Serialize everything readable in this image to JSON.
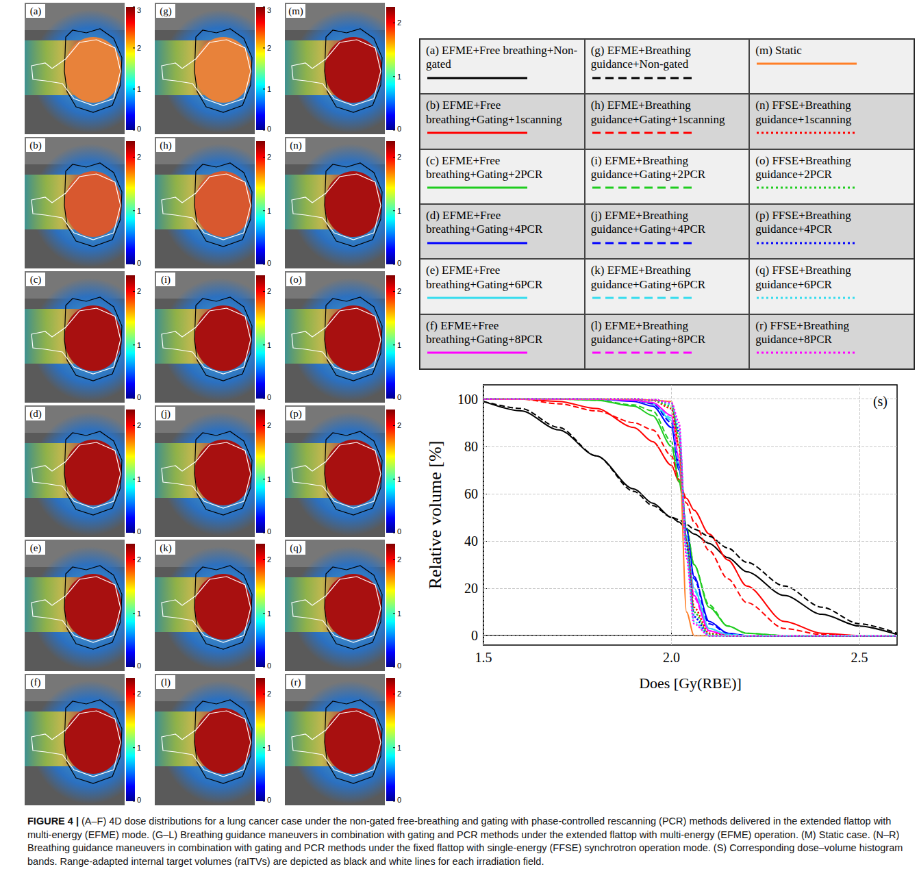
{
  "chart_data": {
    "type": "line",
    "xlabel": "Does [Gy(RBE)]",
    "ylabel": "Relative volume [%]",
    "annotations": [
      "(s)"
    ],
    "xlim": [
      1.5,
      2.6
    ],
    "xticks": [
      1.5,
      {
        "value": 2,
        "label": "2.0"
      },
      2.5
    ],
    "ylim": [
      -4,
      106
    ],
    "yticks": [
      0,
      20,
      40,
      60,
      80,
      100
    ],
    "grid": true,
    "x": [
      1.5,
      1.6,
      1.7,
      1.8,
      1.9,
      1.95,
      2.0,
      2.02,
      2.04,
      2.06,
      2.1,
      2.15,
      2.2,
      2.3,
      2.4,
      2.5,
      2.6
    ],
    "series": [
      {
        "name": "(a) EFME+Free breathing+Non-gated",
        "color": "#000000",
        "line_style": "solid",
        "values": [
          99,
          95,
          87,
          76,
          62,
          56,
          50,
          48,
          45,
          43,
          39,
          33,
          27,
          17,
          9,
          4,
          0.5
        ]
      },
      {
        "name": "(b) EFME+Free breathing+Gating+1scanning",
        "color": "#ff0000",
        "line_style": "solid",
        "values": [
          100,
          100,
          99,
          96,
          88,
          82,
          72,
          65,
          58,
          53,
          43,
          32,
          21,
          6,
          1,
          0,
          0
        ]
      },
      {
        "name": "(c) EFME+Free breathing+Gating+2PCR",
        "color": "#1fcc1f",
        "line_style": "solid",
        "values": [
          100,
          100,
          100,
          99.5,
          97,
          93,
          80,
          65,
          45,
          30,
          12,
          4,
          1,
          0,
          0,
          0,
          0
        ]
      },
      {
        "name": "(d) EFME+Free breathing+Gating+4PCR",
        "color": "#0000ff",
        "line_style": "solid",
        "values": [
          100,
          100,
          100,
          100,
          99,
          97,
          88,
          70,
          45,
          25,
          6,
          1,
          0,
          0,
          0,
          0,
          0
        ]
      },
      {
        "name": "(e) EFME+Free breathing+Gating+6PCR",
        "color": "#33dcee",
        "line_style": "solid",
        "values": [
          100,
          100,
          100,
          100,
          99.5,
          98,
          91,
          72,
          42,
          20,
          3,
          0.5,
          0,
          0,
          0,
          0,
          0
        ]
      },
      {
        "name": "(f) EFME+Free breathing+Gating+8PCR",
        "color": "#ff00ff",
        "line_style": "solid",
        "values": [
          100,
          100,
          100,
          100,
          99.5,
          98.5,
          93,
          74,
          40,
          17,
          2,
          0,
          0,
          0,
          0,
          0,
          0
        ]
      },
      {
        "name": "(g) EFME+Breathing guidance+Non-gated",
        "color": "#000000",
        "line_style": "dashed",
        "values": [
          99,
          96,
          88,
          76,
          61,
          55,
          50,
          49,
          47,
          45,
          42,
          37,
          31,
          21,
          12,
          5,
          1
        ]
      },
      {
        "name": "(h) EFME+Breathing guidance+Gating+1scanning",
        "color": "#ff0000",
        "line_style": "dashed",
        "values": [
          100,
          100,
          98,
          95,
          90,
          87,
          76,
          66,
          56,
          48,
          36,
          24,
          14,
          3,
          0.5,
          0,
          0
        ]
      },
      {
        "name": "(i) EFME+Breathing guidance+Gating+2PCR",
        "color": "#1fcc1f",
        "line_style": "dashed",
        "values": [
          100,
          100,
          100,
          99.5,
          97.5,
          95,
          82,
          66,
          46,
          30,
          13,
          4,
          1,
          0,
          0,
          0,
          0
        ]
      },
      {
        "name": "(j) EFME+Breathing guidance+Gating+4PCR",
        "color": "#0000ff",
        "line_style": "dashed",
        "values": [
          100,
          100,
          100,
          100,
          99.5,
          98,
          90,
          72,
          45,
          24,
          5,
          1,
          0,
          0,
          0,
          0,
          0
        ]
      },
      {
        "name": "(k) EFME+Breathing guidance+Gating+6PCR",
        "color": "#33dcee",
        "line_style": "dashed",
        "values": [
          100,
          100,
          100,
          100,
          99.5,
          98.5,
          92,
          73,
          42,
          19,
          3,
          0.5,
          0,
          0,
          0,
          0,
          0
        ]
      },
      {
        "name": "(l) EFME+Breathing guidance+Gating+8PCR",
        "color": "#ff00ff",
        "line_style": "dashed",
        "values": [
          100,
          100,
          100,
          100,
          99.5,
          98.5,
          93,
          75,
          40,
          16,
          2,
          0,
          0,
          0,
          0,
          0,
          0
        ]
      },
      {
        "name": "(m) Static",
        "color": "#ff7f27",
        "line_style": "solid",
        "values": [
          100,
          100,
          100,
          100,
          100,
          99.5,
          99,
          80,
          10,
          0,
          0,
          0,
          0,
          0,
          0,
          0,
          0
        ]
      },
      {
        "name": "(n) FFSE+Breathing guidance+1scanning",
        "color": "#ff0000",
        "line_style": "dotted",
        "values": [
          100,
          100,
          100,
          100,
          100,
          99.5,
          96,
          80,
          40,
          12,
          1,
          0,
          0,
          0,
          0,
          0,
          0
        ]
      },
      {
        "name": "(o) FFSE+Breathing guidance+2PCR",
        "color": "#1fcc1f",
        "line_style": "dotted",
        "values": [
          100,
          100,
          100,
          100,
          100,
          99.5,
          97,
          84,
          40,
          10,
          0.5,
          0,
          0,
          0,
          0,
          0,
          0
        ]
      },
      {
        "name": "(p) FFSE+Breathing guidance+4PCR",
        "color": "#0000ff",
        "line_style": "dotted",
        "values": [
          100,
          100,
          100,
          100,
          100,
          99.8,
          98,
          86,
          38,
          8,
          0,
          0,
          0,
          0,
          0,
          0,
          0
        ]
      },
      {
        "name": "(q) FFSE+Breathing guidance+6PCR",
        "color": "#33dcee",
        "line_style": "dotted",
        "values": [
          100,
          100,
          100,
          100,
          100,
          99.8,
          98,
          88,
          35,
          6,
          0,
          0,
          0,
          0,
          0,
          0,
          0
        ]
      },
      {
        "name": "(r) FFSE+Breathing guidance+8PCR",
        "color": "#ff00ff",
        "line_style": "dotted",
        "values": [
          100,
          100,
          100,
          100,
          100,
          99.8,
          98.5,
          90,
          33,
          5,
          0,
          0,
          0,
          0,
          0,
          0,
          0
        ]
      }
    ]
  },
  "panels": [
    {
      "label": "(a)",
      "colorbar": {
        "range": [
          0,
          3
        ],
        "ticks": [
          0,
          1,
          2,
          3
        ]
      }
    },
    {
      "label": "(b)",
      "colorbar": {
        "range": [
          0,
          2.3
        ],
        "ticks": [
          0,
          1,
          2
        ]
      }
    },
    {
      "label": "(c)",
      "colorbar": {
        "range": [
          0,
          2.3
        ],
        "ticks": [
          0,
          1,
          2
        ]
      }
    },
    {
      "label": "(d)",
      "colorbar": {
        "range": [
          0,
          2.3
        ],
        "ticks": [
          0,
          1,
          2
        ]
      }
    },
    {
      "label": "(e)",
      "colorbar": {
        "range": [
          0,
          2.3
        ],
        "ticks": [
          0,
          1,
          2
        ]
      }
    },
    {
      "label": "(f)",
      "colorbar": {
        "range": [
          0,
          2.3
        ],
        "ticks": [
          0,
          1,
          2
        ]
      }
    },
    {
      "label": "(g)",
      "colorbar": {
        "range": [
          0,
          3
        ],
        "ticks": [
          0,
          1,
          2,
          3
        ]
      }
    },
    {
      "label": "(h)",
      "colorbar": {
        "range": [
          0,
          2.3
        ],
        "ticks": [
          0,
          1,
          2
        ]
      }
    },
    {
      "label": "(i)",
      "colorbar": {
        "range": [
          0,
          2.3
        ],
        "ticks": [
          0,
          1,
          2
        ]
      }
    },
    {
      "label": "(j)",
      "colorbar": {
        "range": [
          0,
          2.3
        ],
        "ticks": [
          0,
          1,
          2
        ]
      }
    },
    {
      "label": "(k)",
      "colorbar": {
        "range": [
          0,
          2.3
        ],
        "ticks": [
          0,
          1,
          2
        ]
      }
    },
    {
      "label": "(l)",
      "colorbar": {
        "range": [
          0,
          2.3
        ],
        "ticks": [
          0,
          1,
          2
        ]
      }
    },
    {
      "label": "(m)",
      "colorbar": {
        "range": [
          0,
          2.3
        ],
        "ticks": [
          0,
          1,
          2
        ]
      }
    },
    {
      "label": "(n)",
      "colorbar": {
        "range": [
          0,
          2.3
        ],
        "ticks": [
          0,
          1,
          2
        ]
      }
    },
    {
      "label": "(o)",
      "colorbar": {
        "range": [
          0,
          2.3
        ],
        "ticks": [
          0,
          1,
          2
        ]
      }
    },
    {
      "label": "(p)",
      "colorbar": {
        "range": [
          0,
          2.3
        ],
        "ticks": [
          0,
          1,
          2
        ]
      }
    },
    {
      "label": "(q)",
      "colorbar": {
        "range": [
          0,
          2.3
        ],
        "ticks": [
          0,
          1,
          2
        ]
      }
    },
    {
      "label": "(r)",
      "colorbar": {
        "range": [
          0,
          2.3
        ],
        "ticks": [
          0,
          1,
          2
        ]
      }
    }
  ],
  "caption": {
    "label": "FIGURE 4 |",
    "text": "(A–F) 4D dose distributions for a lung cancer case under the non-gated free-breathing and gating with phase-controlled rescanning (PCR) methods delivered in the extended flattop with multi-energy (EFME) mode. (G–L) Breathing guidance maneuvers in combination with gating and PCR methods under the extended flattop with multi-energy (EFME) operation. (M) Static case. (N–R) Breathing guidance maneuvers in combination with gating and PCR methods under the fixed flattop with single-energy (FFSE) synchrotron operation mode. (S) Corresponding dose–volume histogram bands. Range-adapted internal target volumes (raITVs) are depicted as black and white lines for each irradiation field."
  }
}
